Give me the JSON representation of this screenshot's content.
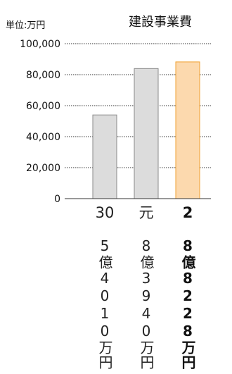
{
  "unit_label": "単位:万円",
  "chart_data": {
    "type": "bar",
    "title": "建設事業費",
    "ylabel": "",
    "xlabel": "",
    "ylim": [
      0,
      100000
    ],
    "y_ticks": [
      "100,000",
      "80,000",
      "60,000",
      "40,000",
      "20,000",
      "0"
    ],
    "grid": true,
    "categories": [
      "30",
      "元",
      "2"
    ],
    "values": [
      54010,
      83940,
      88228
    ],
    "value_labels": [
      "5億4010万円",
      "8億3940万円",
      "8億8228万円"
    ],
    "highlight_index": 2
  },
  "colors": {
    "bar": "#dcdcdc",
    "bar_stroke": "#8a8a8a",
    "highlight": "#fcd9ae",
    "highlight_stroke": "#f0a030",
    "grid": "#333333"
  }
}
